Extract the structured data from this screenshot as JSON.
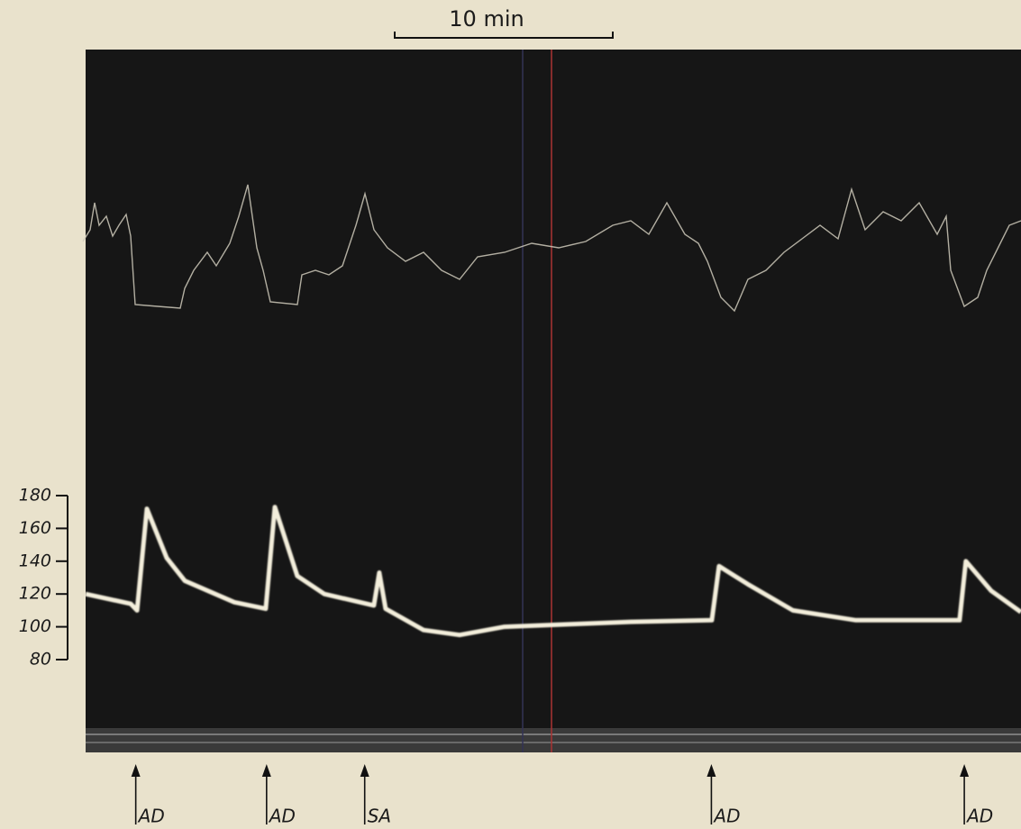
{
  "chart_data": {
    "type": "line",
    "scale_bar": {
      "label": "10 min",
      "minutes": 10
    },
    "x": [
      0,
      2.07,
      2.36,
      2.81,
      3.72,
      4.55,
      6.82,
      8.26,
      8.68,
      9.71,
      10.95,
      13.22,
      13.47,
      13.76,
      15.5,
      17.15,
      19.21,
      25,
      28.72,
      29.05,
      30.37,
      32.44,
      35.33,
      40.08,
      40.37,
      41.53,
      42.89
    ],
    "values": [
      120,
      114,
      110,
      172,
      142,
      128,
      115,
      111,
      173,
      131,
      120,
      113,
      133,
      111,
      98,
      95,
      100,
      103,
      104,
      137,
      126,
      110,
      104,
      104,
      140,
      122,
      109
    ],
    "color": "#f3eedb",
    "xlim": [
      0,
      42.9
    ],
    "ylim": [
      80,
      180
    ],
    "yticks": [
      80,
      100,
      120,
      140,
      160,
      180
    ],
    "events": [
      {
        "label": "AD",
        "x": 2.3
      },
      {
        "label": "AD",
        "x": 8.3
      },
      {
        "label": "SA",
        "x": 12.8
      },
      {
        "label": "AD",
        "x": 28.7
      },
      {
        "label": "AD",
        "x": 40.3
      }
    ]
  }
}
